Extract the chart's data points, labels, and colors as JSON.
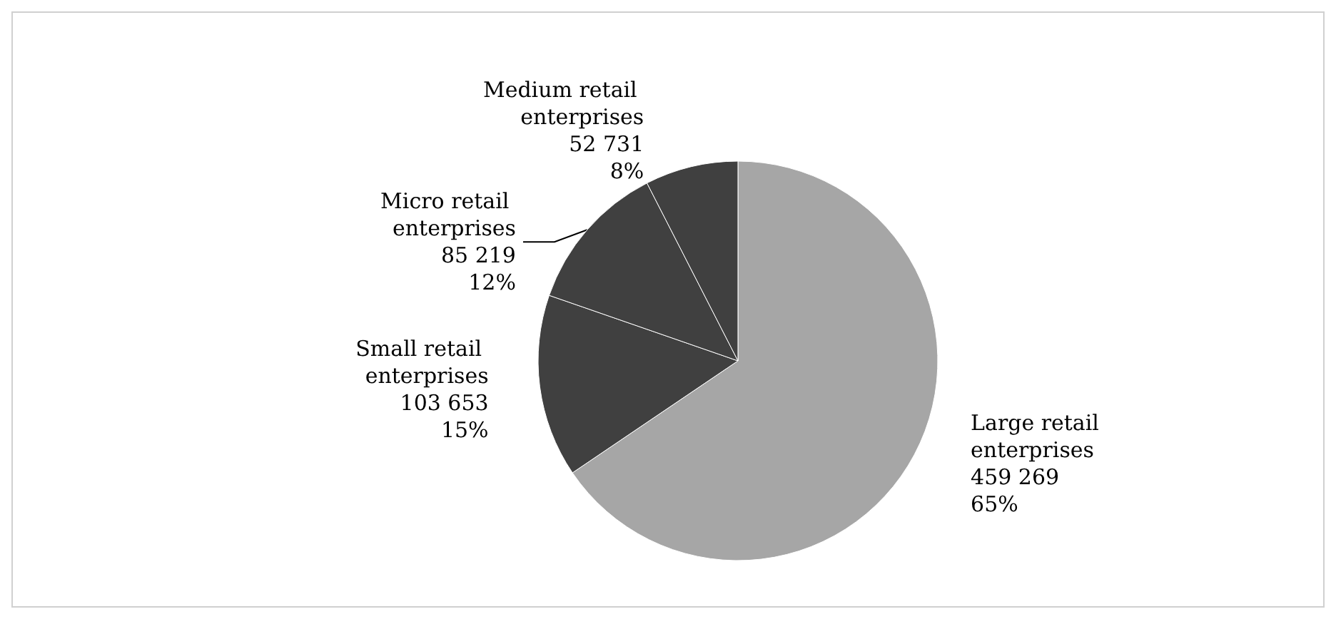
{
  "chart_data": {
    "type": "pie",
    "categories": [
      "Large retail enterprises",
      "Small retail enterprises",
      "Micro retail enterprises",
      "Medium retail enterprises"
    ],
    "values": [
      459269,
      103653,
      85219,
      52731
    ],
    "colors": [
      "#a6a6a6",
      "#404040",
      "#404040",
      "#404040"
    ],
    "value_labels": [
      "459 269\n65%",
      "103 653\n15%",
      "85 219\n12%",
      "52 731\n8%"
    ],
    "legend": false
  }
}
